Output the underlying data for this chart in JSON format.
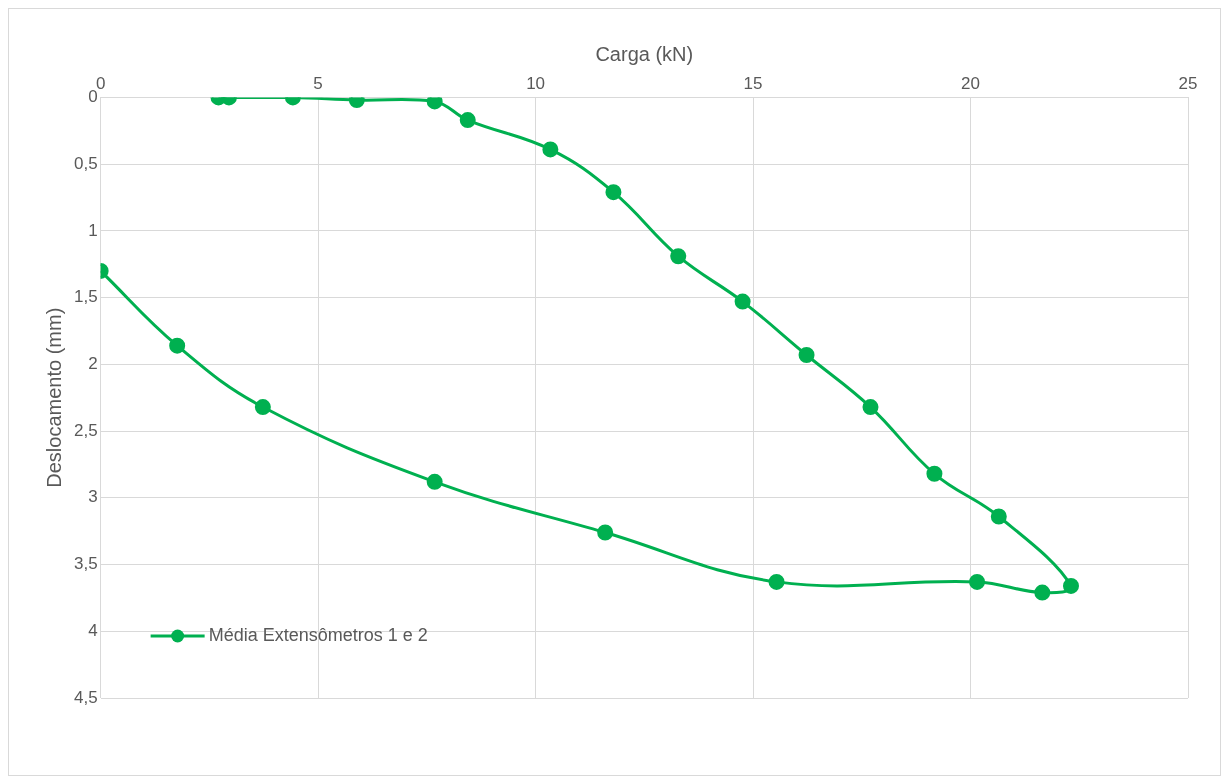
{
  "chart_data": {
    "type": "line",
    "xlabel": "Carga (kN)",
    "ylabel": "Deslocamento (mm)",
    "xlim": [
      0,
      25
    ],
    "xticks": [
      0,
      5,
      10,
      15,
      20,
      25
    ],
    "ylim": [
      4.5,
      0
    ],
    "yticks": [
      0,
      {
        "value": 0.5,
        "label": "0,5"
      },
      1,
      {
        "value": 1.5,
        "label": "1,5"
      },
      2,
      {
        "value": 2.5,
        "label": "2,5"
      },
      3,
      {
        "value": 3.5,
        "label": "3,5"
      },
      4,
      {
        "value": 4.5,
        "label": "4,5"
      }
    ],
    "grid": true,
    "legend": "bottom left",
    "marker": "circle",
    "line_style": "solid",
    "series": [
      {
        "name": "Média Extensômetros 1 e 2",
        "color": "#00b050",
        "x": [
          2.71,
          2.95,
          4.42,
          5.89,
          7.68,
          8.44,
          10.34,
          11.79,
          13.28,
          14.76,
          16.23,
          17.7,
          19.17,
          20.65,
          22.31,
          21.65,
          20.15,
          15.54,
          11.6,
          7.68,
          3.73,
          1.76,
          0
        ],
        "values": [
          0,
          0,
          0,
          0.02,
          0.03,
          0.17,
          0.39,
          0.71,
          1.19,
          1.53,
          1.93,
          2.32,
          2.82,
          3.14,
          3.66,
          3.71,
          3.63,
          3.63,
          3.26,
          2.88,
          2.32,
          1.86,
          1.3
        ]
      }
    ]
  }
}
